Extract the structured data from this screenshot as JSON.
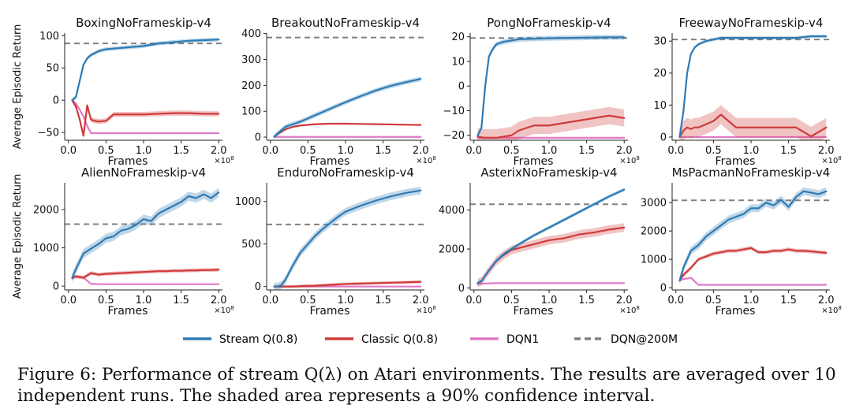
{
  "figure": {
    "legend": [
      {
        "name": "Stream Q(0.8)",
        "color": "#2e7bb4",
        "dash": "solid"
      },
      {
        "name": "Classic Q(0.8)",
        "color": "#d03b3a",
        "dash": "solid"
      },
      {
        "name": "DQN1",
        "color": "#e07ac8",
        "dash": "solid"
      },
      {
        "name": "DQN@200M",
        "color": "#808080",
        "dash": "dashed"
      }
    ],
    "caption": "Figure 6: Performance of stream Q(λ) on Atari environments. The results are averaged over 10 independent runs. The shaded area represents a 90% confidence interval."
  },
  "chart_data": [
    {
      "type": "line",
      "title": "BoxingNoFrameskip-v4",
      "xlabel": "Frames",
      "ylabel": "Average Episodic Return",
      "x_scale": "×10^8",
      "xlim": [
        -0.05,
        2.05
      ],
      "xticks": [
        0.0,
        0.5,
        1.0,
        1.5,
        2.0
      ],
      "xtick_labels": [
        "0.0",
        "0.5",
        "1.0",
        "1.5",
        "2.0"
      ],
      "ylim": [
        -62,
        104
      ],
      "yticks": [
        -50,
        0,
        50,
        100
      ],
      "ytick_labels": [
        "−50",
        "0",
        "50",
        "100"
      ],
      "reference_line": {
        "name": "DQN@200M",
        "y": 88
      },
      "x": [
        0.05,
        0.1,
        0.15,
        0.2,
        0.25,
        0.3,
        0.35,
        0.4,
        0.5,
        0.6,
        0.8,
        1.0,
        1.2,
        1.4,
        1.6,
        1.8,
        2.0
      ],
      "series": [
        {
          "name": "Stream Q(0.8)",
          "values": [
            0,
            5,
            30,
            55,
            65,
            70,
            73,
            76,
            79,
            80,
            82,
            84,
            88,
            90,
            92,
            93,
            94
          ],
          "ci": 3
        },
        {
          "name": "Classic Q(0.8)",
          "values": [
            0,
            -10,
            -30,
            -55,
            -8,
            -30,
            -32,
            -33,
            -32,
            -22,
            -22,
            -22,
            -21,
            -20,
            -20,
            -21,
            -21
          ],
          "ci": 4
        },
        {
          "name": "DQN1",
          "values": [
            0,
            -5,
            -15,
            -25,
            -40,
            -51,
            -51,
            -51,
            -51,
            -51,
            -51,
            -51,
            -51,
            -51,
            -51,
            -51,
            -51
          ],
          "ci": 1
        }
      ]
    },
    {
      "type": "line",
      "title": "BreakoutNoFrameskip-v4",
      "xlabel": "Frames",
      "ylabel": "",
      "x_scale": "×10^8",
      "xlim": [
        -0.05,
        2.05
      ],
      "xticks": [
        0.0,
        0.5,
        1.0,
        1.5,
        2.0
      ],
      "xtick_labels": [
        "0.0",
        "0.5",
        "1.0",
        "1.5",
        "2.0"
      ],
      "ylim": [
        -12,
        402
      ],
      "yticks": [
        0,
        100,
        200,
        300,
        400
      ],
      "ytick_labels": [
        "0",
        "100",
        "200",
        "300",
        "400"
      ],
      "reference_line": {
        "name": "DQN@200M",
        "y": 385
      },
      "x": [
        0.05,
        0.1,
        0.2,
        0.3,
        0.4,
        0.6,
        0.8,
        1.0,
        1.2,
        1.4,
        1.6,
        1.8,
        2.0
      ],
      "series": [
        {
          "name": "Stream Q(0.8)",
          "values": [
            2,
            15,
            40,
            50,
            60,
            85,
            110,
            135,
            158,
            180,
            198,
            212,
            225
          ],
          "ci": 9
        },
        {
          "name": "Classic Q(0.8)",
          "values": [
            2,
            12,
            30,
            40,
            45,
            50,
            52,
            52,
            51,
            50,
            49,
            48,
            47
          ],
          "ci": 3
        },
        {
          "name": "DQN1",
          "values": [
            1,
            1,
            1,
            1,
            1,
            1,
            1,
            1,
            1,
            1,
            1,
            1,
            1
          ],
          "ci": 0.5
        }
      ]
    },
    {
      "type": "line",
      "title": "PongNoFrameskip-v4",
      "xlabel": "Frames",
      "ylabel": "",
      "x_scale": "×10^8",
      "xlim": [
        -0.05,
        2.05
      ],
      "xticks": [
        0.0,
        0.5,
        1.0,
        1.5,
        2.0
      ],
      "xtick_labels": [
        "0.0",
        "0.5",
        "1.0",
        "1.5",
        "2.0"
      ],
      "ylim": [
        -22,
        21.5
      ],
      "yticks": [
        -20,
        -10,
        0,
        10,
        20
      ],
      "ytick_labels": [
        "−20",
        "−10",
        "0",
        "10",
        "20"
      ],
      "reference_line": {
        "name": "DQN@200M",
        "y": 19.5
      },
      "x": [
        0.05,
        0.1,
        0.15,
        0.2,
        0.25,
        0.3,
        0.4,
        0.5,
        0.6,
        0.8,
        1.0,
        1.2,
        1.4,
        1.6,
        1.8,
        2.0
      ],
      "series": [
        {
          "name": "Stream Q(0.8)",
          "values": [
            -20,
            -17,
            0,
            12,
            15,
            17,
            18,
            18.5,
            19,
            19.2,
            19.4,
            19.5,
            19.6,
            19.7,
            19.8,
            19.8
          ],
          "ci": 1
        },
        {
          "name": "Classic Q(0.8)",
          "values": [
            -20.5,
            -20.8,
            -21,
            -21,
            -21,
            -21,
            -20.5,
            -20,
            -18,
            -16,
            -16,
            -15,
            -14,
            -13,
            -12,
            -13
          ],
          "ci": 3.5
        },
        {
          "name": "DQN1",
          "values": [
            -21,
            -21,
            -21,
            -21,
            -21,
            -21,
            -21,
            -21,
            -21,
            -21,
            -21,
            -21,
            -21,
            -21,
            -21,
            -21
          ],
          "ci": 0.3
        }
      ]
    },
    {
      "type": "line",
      "title": "FreewayNoFrameskip-v4",
      "xlabel": "Frames",
      "ylabel": "",
      "x_scale": "×10^8",
      "xlim": [
        -0.05,
        2.05
      ],
      "xticks": [
        0.0,
        0.5,
        1.0,
        1.5,
        2.0
      ],
      "xtick_labels": [
        "0.0",
        "0.5",
        "1.0",
        "1.5",
        "2.0"
      ],
      "ylim": [
        -1,
        32.5
      ],
      "yticks": [
        0,
        10,
        20,
        30
      ],
      "ytick_labels": [
        "0",
        "10",
        "20",
        "30"
      ],
      "reference_line": {
        "name": "DQN@200M",
        "y": 30.5
      },
      "x": [
        0.05,
        0.1,
        0.15,
        0.2,
        0.25,
        0.3,
        0.4,
        0.5,
        0.6,
        0.8,
        1.0,
        1.2,
        1.4,
        1.6,
        1.8,
        2.0
      ],
      "series": [
        {
          "name": "Stream Q(0.8)",
          "values": [
            0,
            8,
            20,
            26,
            28,
            29,
            30,
            30.5,
            31,
            31,
            31,
            31,
            31,
            31,
            31.5,
            31.5
          ],
          "ci": 0.5
        },
        {
          "name": "Classic Q(0.8)",
          "values": [
            0,
            2,
            3,
            2.5,
            3,
            3,
            4,
            5,
            7,
            3,
            3,
            3,
            3,
            3,
            0.2,
            3
          ],
          "ci": 3
        },
        {
          "name": "DQN1",
          "values": [
            0,
            0,
            0,
            0,
            0,
            0,
            0,
            0,
            0,
            0,
            0,
            0,
            0,
            0,
            0,
            0
          ],
          "ci": 0.2
        }
      ]
    },
    {
      "type": "line",
      "title": "AlienNoFrameskip-v4",
      "xlabel": "Frames",
      "ylabel": "Average Episodic Return",
      "x_scale": "×10^8",
      "xlim": [
        -0.05,
        2.05
      ],
      "xticks": [
        0.0,
        0.5,
        1.0,
        1.5,
        2.0
      ],
      "xtick_labels": [
        "0.0",
        "0.5",
        "1.0",
        "1.5",
        "2.0"
      ],
      "ylim": [
        -100,
        2700
      ],
      "yticks": [
        0,
        1000,
        2000
      ],
      "ytick_labels": [
        "0",
        "1000",
        "2000"
      ],
      "reference_line": {
        "name": "DQN@200M",
        "y": 1620
      },
      "x": [
        0.05,
        0.1,
        0.2,
        0.3,
        0.4,
        0.5,
        0.6,
        0.7,
        0.8,
        0.9,
        1.0,
        1.1,
        1.2,
        1.3,
        1.4,
        1.5,
        1.6,
        1.7,
        1.8,
        1.9,
        2.0
      ],
      "series": [
        {
          "name": "Stream Q(0.8)",
          "values": [
            220,
            450,
            850,
            980,
            1100,
            1250,
            1300,
            1450,
            1500,
            1600,
            1750,
            1700,
            1900,
            2000,
            2100,
            2200,
            2350,
            2300,
            2400,
            2300,
            2450
          ],
          "ci": 120
        },
        {
          "name": "Classic Q(0.8)",
          "values": [
            220,
            250,
            220,
            340,
            300,
            320,
            330,
            340,
            350,
            360,
            370,
            380,
            390,
            390,
            400,
            400,
            410,
            410,
            420,
            420,
            430
          ],
          "ci": 50
        },
        {
          "name": "DQN1",
          "values": [
            200,
            260,
            220,
            60,
            50,
            50,
            50,
            50,
            50,
            50,
            50,
            50,
            50,
            50,
            50,
            50,
            50,
            50,
            50,
            50,
            50
          ],
          "ci": 20
        }
      ]
    },
    {
      "type": "line",
      "title": "EnduroNoFrameskip-v4",
      "xlabel": "Frames",
      "ylabel": "",
      "x_scale": "×10^8",
      "xlim": [
        -0.05,
        2.05
      ],
      "xticks": [
        0.0,
        0.5,
        1.0,
        1.5,
        2.0
      ],
      "xtick_labels": [
        "0.0",
        "0.5",
        "1.0",
        "1.5",
        "2.0"
      ],
      "ylim": [
        -40,
        1220
      ],
      "yticks": [
        0,
        500,
        1000
      ],
      "ytick_labels": [
        "0",
        "500",
        "1000"
      ],
      "reference_line": {
        "name": "DQN@200M",
        "y": 730
      },
      "x": [
        0.05,
        0.1,
        0.15,
        0.2,
        0.3,
        0.4,
        0.5,
        0.6,
        0.7,
        0.8,
        0.9,
        1.0,
        1.2,
        1.4,
        1.6,
        1.8,
        2.0
      ],
      "series": [
        {
          "name": "Stream Q(0.8)",
          "values": [
            0,
            0,
            20,
            80,
            250,
            400,
            500,
            600,
            680,
            750,
            820,
            880,
            950,
            1010,
            1060,
            1100,
            1130
          ],
          "ci": 45
        },
        {
          "name": "Classic Q(0.8)",
          "values": [
            0,
            0,
            0,
            0,
            0,
            5,
            8,
            10,
            15,
            20,
            25,
            30,
            35,
            40,
            45,
            50,
            55
          ],
          "ci": 18
        },
        {
          "name": "DQN1",
          "values": [
            0,
            0,
            0,
            0,
            0,
            0,
            0,
            0,
            0,
            0,
            0,
            0,
            0,
            0,
            0,
            0,
            0
          ],
          "ci": 3
        }
      ]
    },
    {
      "type": "line",
      "title": "AsterixNoFrameskip-v4",
      "xlabel": "Frames",
      "ylabel": "",
      "x_scale": "×10^8",
      "xlim": [
        -0.05,
        2.05
      ],
      "xticks": [
        0.0,
        0.5,
        1.0,
        1.5,
        2.0
      ],
      "xtick_labels": [
        "0.0",
        "0.5",
        "1.0",
        "1.5",
        "2.0"
      ],
      "ylim": [
        -100,
        5400
      ],
      "yticks": [
        0,
        2000,
        4000
      ],
      "ytick_labels": [
        "0",
        "2000",
        "4000"
      ],
      "reference_line": {
        "name": "DQN@200M",
        "y": 4300
      },
      "x": [
        0.05,
        0.1,
        0.2,
        0.3,
        0.4,
        0.5,
        0.6,
        0.8,
        1.0,
        1.2,
        1.4,
        1.6,
        1.8,
        2.0
      ],
      "series": [
        {
          "name": "Stream Q(0.8)",
          "values": [
            250,
            350,
            900,
            1400,
            1750,
            2000,
            2250,
            2700,
            3100,
            3500,
            3900,
            4300,
            4700,
            5050
          ],
          "ci": 90
        },
        {
          "name": "Classic Q(0.8)",
          "values": [
            250,
            350,
            900,
            1400,
            1700,
            1950,
            2050,
            2250,
            2450,
            2550,
            2750,
            2850,
            3000,
            3100
          ],
          "ci": 220
        },
        {
          "name": "DQN1",
          "values": [
            200,
            220,
            240,
            250,
            250,
            250,
            250,
            250,
            250,
            250,
            250,
            250,
            250,
            250
          ],
          "ci": 25
        }
      ]
    },
    {
      "type": "line",
      "title": "MsPacmanNoFrameskip-v4",
      "xlabel": "Frames",
      "ylabel": "",
      "x_scale": "×10^8",
      "xlim": [
        -0.05,
        2.05
      ],
      "xticks": [
        0.0,
        0.5,
        1.0,
        1.5,
        2.0
      ],
      "xtick_labels": [
        "0.0",
        "0.5",
        "1.0",
        "1.5",
        "2.0"
      ],
      "ylim": [
        -80,
        3700
      ],
      "yticks": [
        0,
        1000,
        2000,
        3000
      ],
      "ytick_labels": [
        "0",
        "1000",
        "2000",
        "3000"
      ],
      "reference_line": {
        "name": "DQN@200M",
        "y": 3080
      },
      "x": [
        0.05,
        0.1,
        0.2,
        0.3,
        0.4,
        0.5,
        0.6,
        0.7,
        0.8,
        0.9,
        1.0,
        1.1,
        1.2,
        1.3,
        1.4,
        1.5,
        1.6,
        1.7,
        1.8,
        1.9,
        2.0
      ],
      "series": [
        {
          "name": "Stream Q(0.8)",
          "values": [
            250,
            700,
            1300,
            1500,
            1800,
            2000,
            2200,
            2400,
            2500,
            2600,
            2800,
            2800,
            3000,
            2900,
            3100,
            2850,
            3200,
            3400,
            3350,
            3300,
            3400
          ],
          "ci": 140
        },
        {
          "name": "Classic Q(0.8)",
          "values": [
            250,
            450,
            700,
            1000,
            1100,
            1200,
            1250,
            1300,
            1300,
            1350,
            1400,
            1250,
            1250,
            1300,
            1300,
            1350,
            1300,
            1300,
            1280,
            1250,
            1230
          ],
          "ci": 70
        },
        {
          "name": "DQN1",
          "values": [
            250,
            300,
            350,
            100,
            100,
            100,
            100,
            100,
            100,
            100,
            100,
            100,
            100,
            100,
            100,
            100,
            100,
            100,
            100,
            100,
            100
          ],
          "ci": 25
        }
      ]
    }
  ]
}
